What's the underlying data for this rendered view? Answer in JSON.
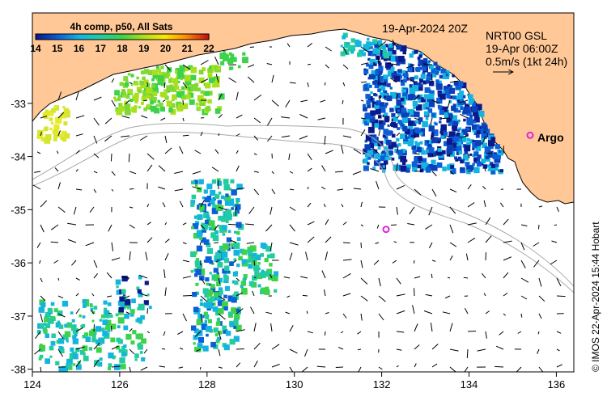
{
  "map": {
    "date_label": "19-Apr-2024 20Z",
    "current_product": {
      "line1": "NRT00 GSL",
      "line2": "19-Apr 06:00Z",
      "scale_text": "0.5m/s (1kt 24h)"
    },
    "colorbar": {
      "title": "4h comp, p50, All Sats",
      "tick_labels": [
        "14",
        "15",
        "16",
        "17",
        "18",
        "19",
        "20",
        "21",
        "22"
      ],
      "range": [
        14,
        22
      ],
      "colors": [
        "#0a1a8c",
        "#0a5fd6",
        "#14b4e0",
        "#22cca0",
        "#3cd24a",
        "#a8e01c",
        "#ffe600",
        "#ff8a00",
        "#c81414"
      ]
    },
    "argo_label": "Argo",
    "argo_markers": [
      {
        "lon": 135.4,
        "lat": -33.6,
        "labelled": true
      },
      {
        "lon": 132.1,
        "lat": -35.37,
        "labelled": false
      }
    ],
    "x_ticks": [
      "124",
      "126",
      "128",
      "130",
      "132",
      "134",
      "136"
    ],
    "y_ticks": [
      "-33",
      "-34",
      "-35",
      "-36",
      "-37",
      "-38"
    ],
    "lon_range": [
      124,
      136.4
    ],
    "lat_range": [
      -38.05,
      -31.3
    ],
    "credit": "© IMOS 22-Apr-2024 15:44 Hobart",
    "colors": {
      "land": "#ffc896",
      "sea": "#ffffff",
      "bathymetry": "#a8a8a8",
      "argo": "#e020e0"
    }
  }
}
